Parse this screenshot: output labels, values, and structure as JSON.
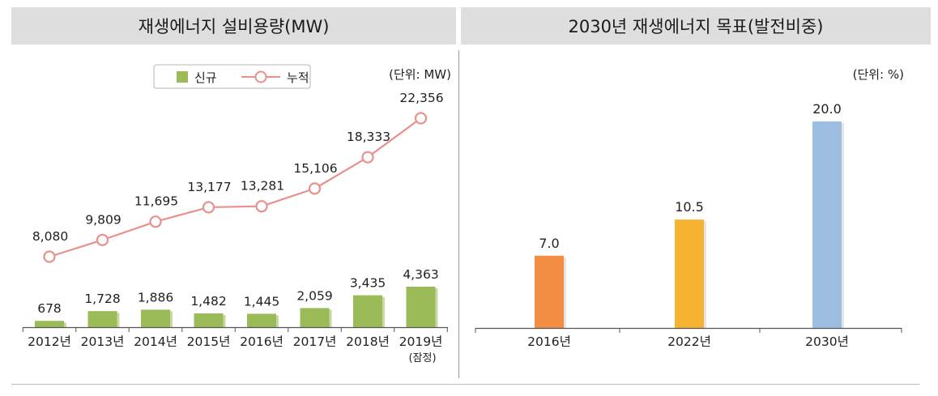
{
  "panels": {
    "left_title": "재생에너지 설비용량(MW)",
    "right_title": "2030년 재생에너지 목표(발전비중)"
  },
  "chart_data": [
    {
      "type": "bar+line",
      "title": "재생에너지 설비용량(MW)",
      "unit_label": "(단위: MW)",
      "categories": [
        "2012년",
        "2013년",
        "2014년",
        "2015년",
        "2016년",
        "2017년",
        "2018년",
        "2019년"
      ],
      "category_notes": [
        "",
        "",
        "",
        "",
        "",
        "",
        "",
        "(잠정)"
      ],
      "legend": {
        "bar": "신규",
        "line": "누적",
        "placement": "top-center"
      },
      "series": [
        {
          "name": "신규",
          "type": "bar",
          "color": "#9bbb59",
          "values": [
            678,
            1728,
            1886,
            1482,
            1445,
            2059,
            3435,
            4363
          ],
          "labels": [
            "678",
            "1,728",
            "1,886",
            "1,482",
            "1,445",
            "2,059",
            "3,435",
            "4,363"
          ]
        },
        {
          "name": "누적",
          "type": "line",
          "color": "#e8908c",
          "values": [
            8080,
            9809,
            11695,
            13177,
            13281,
            15106,
            18333,
            22356
          ],
          "labels": [
            "8,080",
            "9,809",
            "11,695",
            "13,177",
            "13,281",
            "15,106",
            "18,333",
            "22,356"
          ]
        }
      ]
    },
    {
      "type": "bar",
      "title": "2030년 재생에너지 목표(발전비중)",
      "unit_label": "(단위: %)",
      "categories": [
        "2016년",
        "2022년",
        "2030년"
      ],
      "values": [
        7.0,
        10.5,
        20.0
      ],
      "labels": [
        "7.0",
        "10.5",
        "20.0"
      ],
      "colors": [
        "#f28d43",
        "#f6b332",
        "#9dbde3"
      ]
    }
  ]
}
